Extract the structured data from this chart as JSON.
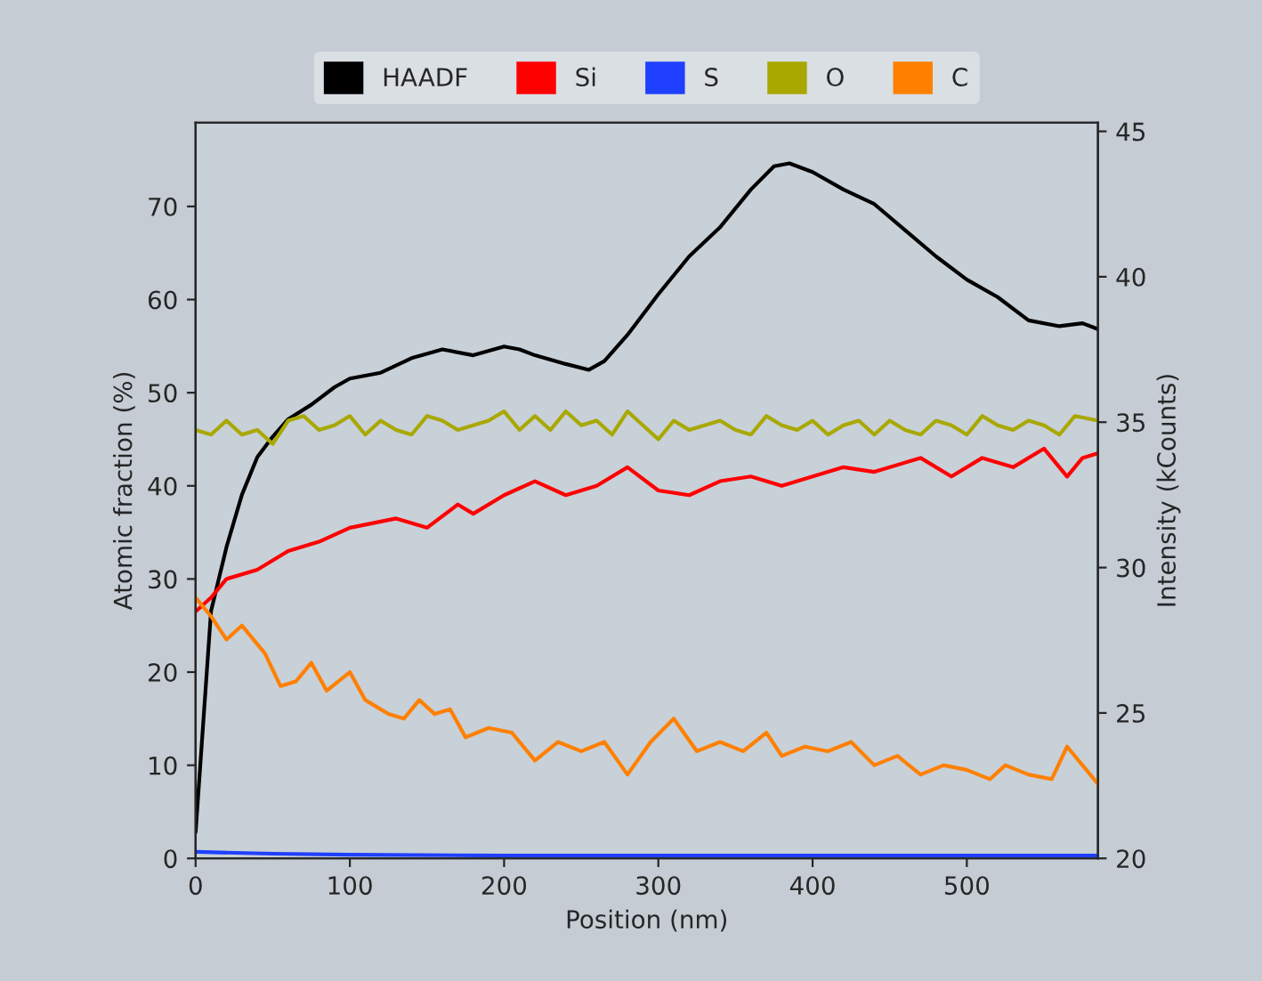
{
  "chart_data": {
    "type": "line",
    "xlabel": "Position (nm)",
    "ylabel": "Atomic fraction (%)",
    "y2label": "Intensity (kCounts)",
    "xlim": [
      0,
      585
    ],
    "xticks": [
      0,
      100,
      200,
      300,
      400,
      500
    ],
    "ylim": [
      0,
      79
    ],
    "yticks": [
      0,
      10,
      20,
      30,
      40,
      50,
      60,
      70
    ],
    "y2lim": [
      20,
      45.3
    ],
    "y2ticks": [
      20,
      25,
      30,
      35,
      40,
      45
    ],
    "grid": false,
    "legend": "top",
    "marker": "none",
    "line_style": "solid",
    "series": [
      {
        "name": "HAADF",
        "color": "#000000",
        "axis": "y2",
        "x": [
          0,
          10,
          20,
          30,
          40,
          50,
          60,
          75,
          90,
          100,
          120,
          140,
          160,
          180,
          200,
          210,
          220,
          240,
          255,
          265,
          280,
          300,
          320,
          340,
          360,
          375,
          385,
          400,
          420,
          440,
          460,
          480,
          500,
          520,
          540,
          560,
          575,
          585
        ],
        "values": [
          20.9,
          28.5,
          30.7,
          32.5,
          33.8,
          34.5,
          35.1,
          35.6,
          36.2,
          36.5,
          36.7,
          37.2,
          37.5,
          37.3,
          37.6,
          37.5,
          37.3,
          37.0,
          36.8,
          37.1,
          38.0,
          39.4,
          40.7,
          41.7,
          43.0,
          43.8,
          43.9,
          43.6,
          43.0,
          42.5,
          41.6,
          40.7,
          39.9,
          39.3,
          38.5,
          38.3,
          38.4,
          38.2
        ]
      },
      {
        "name": "Si",
        "color": "#ff0000",
        "x": [
          0,
          10,
          20,
          40,
          60,
          80,
          100,
          130,
          150,
          170,
          180,
          200,
          220,
          240,
          260,
          280,
          300,
          320,
          340,
          360,
          380,
          400,
          420,
          440,
          470,
          490,
          510,
          530,
          550,
          565,
          575,
          585
        ],
        "values": [
          26.5,
          28,
          30,
          31,
          33,
          34,
          35.5,
          36.5,
          35.5,
          38,
          37,
          39,
          40.5,
          39,
          40,
          42,
          39.5,
          39,
          40.5,
          41,
          40,
          41,
          42,
          41.5,
          43,
          41,
          43,
          42,
          44,
          41,
          43,
          43.5
        ]
      },
      {
        "name": "S",
        "color": "#2040ff",
        "x": [
          0,
          50,
          100,
          200,
          300,
          400,
          500,
          585
        ],
        "values": [
          0.7,
          0.5,
          0.4,
          0.3,
          0.3,
          0.3,
          0.3,
          0.3
        ]
      },
      {
        "name": "O",
        "color": "#a8a800",
        "x": [
          0,
          10,
          20,
          30,
          40,
          50,
          60,
          70,
          80,
          90,
          100,
          110,
          120,
          130,
          140,
          150,
          160,
          170,
          180,
          190,
          200,
          210,
          220,
          230,
          240,
          250,
          260,
          270,
          280,
          290,
          300,
          310,
          320,
          330,
          340,
          350,
          360,
          370,
          380,
          390,
          400,
          410,
          420,
          430,
          440,
          450,
          460,
          470,
          480,
          490,
          500,
          510,
          520,
          530,
          540,
          550,
          560,
          570,
          585
        ],
        "values": [
          46,
          45.5,
          47,
          45.5,
          46,
          44.5,
          47,
          47.5,
          46,
          46.5,
          47.5,
          45.5,
          47,
          46,
          45.5,
          47.5,
          47,
          46,
          46.5,
          47,
          48,
          46,
          47.5,
          46,
          48,
          46.5,
          47,
          45.5,
          48,
          46.5,
          45,
          47,
          46,
          46.5,
          47,
          46,
          45.5,
          47.5,
          46.5,
          46,
          47,
          45.5,
          46.5,
          47,
          45.5,
          47,
          46,
          45.5,
          47,
          46.5,
          45.5,
          47.5,
          46.5,
          46,
          47,
          46.5,
          45.5,
          47.5,
          47
        ]
      },
      {
        "name": "C",
        "color": "#ff8000",
        "x": [
          0,
          10,
          20,
          30,
          45,
          55,
          65,
          75,
          85,
          100,
          110,
          125,
          135,
          145,
          155,
          165,
          175,
          190,
          205,
          220,
          235,
          250,
          265,
          280,
          295,
          310,
          325,
          340,
          355,
          370,
          380,
          395,
          410,
          425,
          440,
          455,
          470,
          485,
          500,
          515,
          525,
          540,
          555,
          565,
          580,
          585
        ],
        "values": [
          28,
          26,
          23.5,
          25,
          22,
          18.5,
          19,
          21,
          18,
          20,
          17,
          15.5,
          15,
          17,
          15.5,
          16,
          13,
          14,
          13.5,
          10.5,
          12.5,
          11.5,
          12.5,
          9,
          12.5,
          15,
          11.5,
          12.5,
          11.5,
          13.5,
          11,
          12,
          11.5,
          12.5,
          10,
          11,
          9,
          10,
          9.5,
          8.5,
          10,
          9,
          8.5,
          12,
          9,
          8
        ]
      }
    ]
  }
}
